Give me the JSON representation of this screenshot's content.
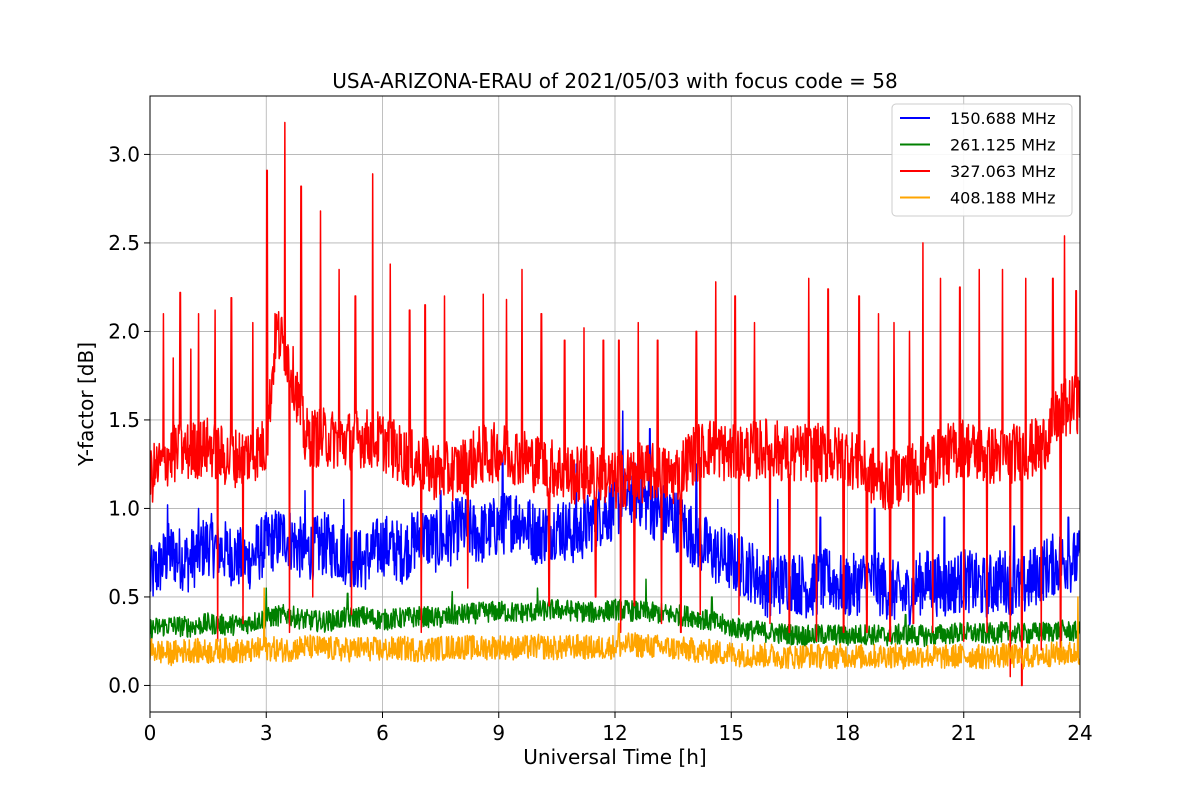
{
  "chart_data": {
    "type": "line",
    "title": "USA-ARIZONA-ERAU of 2021/05/03 with focus code = 58",
    "xlabel": "Universal Time [h]",
    "ylabel": "Y-factor [dB]",
    "xlim": [
      0,
      24
    ],
    "ylim": [
      -0.15,
      3.33
    ],
    "xticks": [
      0,
      3,
      6,
      9,
      12,
      15,
      18,
      21,
      24
    ],
    "xtick_labels": [
      "0",
      "3",
      "6",
      "9",
      "12",
      "15",
      "18",
      "21",
      "24"
    ],
    "yticks": [
      0.0,
      0.5,
      1.0,
      1.5,
      2.0,
      2.5,
      3.0
    ],
    "ytick_labels": [
      "0.0",
      "0.5",
      "1.0",
      "1.5",
      "2.0",
      "2.5",
      "3.0"
    ],
    "grid": true,
    "legend_position": "top-right",
    "series": [
      {
        "name": "150.688 MHz",
        "color": "#0000ff",
        "x": [
          0,
          0.5,
          1,
          1.5,
          2,
          2.5,
          3,
          3.5,
          4,
          4.5,
          5,
          5.5,
          6,
          6.5,
          7,
          7.5,
          8,
          8.5,
          9,
          9.5,
          10,
          10.5,
          11,
          11.5,
          12,
          12.5,
          13,
          13.5,
          14,
          14.5,
          15,
          15.5,
          16,
          16.5,
          17,
          17.5,
          18,
          18.5,
          19,
          19.5,
          20,
          20.5,
          21,
          21.5,
          22,
          22.5,
          23,
          23.5,
          24
        ],
        "y": [
          0.6,
          0.75,
          0.7,
          0.8,
          0.75,
          0.7,
          0.8,
          0.85,
          0.75,
          0.8,
          0.75,
          0.7,
          0.8,
          0.75,
          0.85,
          0.8,
          0.9,
          0.85,
          0.9,
          0.95,
          0.85,
          0.9,
          0.85,
          0.95,
          1.0,
          1.1,
          1.0,
          0.95,
          0.85,
          0.75,
          0.7,
          0.65,
          0.55,
          0.6,
          0.55,
          0.6,
          0.55,
          0.6,
          0.55,
          0.5,
          0.6,
          0.55,
          0.6,
          0.55,
          0.6,
          0.55,
          0.65,
          0.7,
          0.7
        ],
        "spikes": [
          [
            0.45,
            1.02
          ],
          [
            1.25,
            1.0
          ],
          [
            4.0,
            1.1
          ],
          [
            5.0,
            1.05
          ],
          [
            7.5,
            1.1
          ],
          [
            9.1,
            1.3
          ],
          [
            11.0,
            1.25
          ],
          [
            12.2,
            1.55
          ],
          [
            12.9,
            1.45
          ],
          [
            14.1,
            1.25
          ],
          [
            16.2,
            1.05
          ],
          [
            17.3,
            0.95
          ],
          [
            18.7,
            1.0
          ],
          [
            20.5,
            0.95
          ],
          [
            22.3,
            0.9
          ],
          [
            23.7,
            0.95
          ]
        ]
      },
      {
        "name": "261.125 MHz",
        "color": "#008000",
        "x": [
          0,
          0.5,
          1,
          1.5,
          2,
          2.5,
          3,
          3.5,
          4,
          4.5,
          5,
          5.5,
          6,
          6.5,
          7,
          7.5,
          8,
          8.5,
          9,
          9.5,
          10,
          10.5,
          11,
          11.5,
          12,
          12.5,
          13,
          13.5,
          14,
          14.5,
          15,
          15.5,
          16,
          16.5,
          17,
          17.5,
          18,
          18.5,
          19,
          19.5,
          20,
          20.5,
          21,
          21.5,
          22,
          22.5,
          23,
          23.5,
          24
        ],
        "y": [
          0.32,
          0.34,
          0.33,
          0.35,
          0.34,
          0.35,
          0.38,
          0.4,
          0.37,
          0.36,
          0.38,
          0.39,
          0.37,
          0.38,
          0.39,
          0.38,
          0.4,
          0.41,
          0.42,
          0.41,
          0.42,
          0.43,
          0.42,
          0.41,
          0.43,
          0.42,
          0.41,
          0.4,
          0.39,
          0.36,
          0.33,
          0.31,
          0.3,
          0.29,
          0.28,
          0.29,
          0.28,
          0.29,
          0.28,
          0.29,
          0.28,
          0.29,
          0.3,
          0.29,
          0.3,
          0.29,
          0.3,
          0.31,
          0.3
        ],
        "spikes": [
          [
            3.0,
            0.55
          ],
          [
            5.1,
            0.52
          ],
          [
            7.8,
            0.53
          ],
          [
            10.0,
            0.55
          ],
          [
            12.8,
            0.6
          ],
          [
            14.5,
            0.5
          ],
          [
            19.5,
            0.4
          ]
        ]
      },
      {
        "name": "327.063 MHz",
        "color": "#ff0000",
        "x": [
          0,
          0.5,
          1,
          1.5,
          2,
          2.5,
          3,
          3.25,
          3.5,
          3.75,
          4,
          4.5,
          5,
          5.5,
          6,
          6.5,
          7,
          7.5,
          8,
          8.5,
          9,
          9.5,
          10,
          10.5,
          11,
          11.5,
          12,
          12.5,
          13,
          13.5,
          14,
          14.5,
          15,
          15.5,
          16,
          16.5,
          17,
          17.5,
          18,
          18.5,
          19,
          19.5,
          20,
          20.5,
          21,
          21.5,
          22,
          22.5,
          23,
          23.5,
          24
        ],
        "y": [
          1.18,
          1.3,
          1.32,
          1.35,
          1.28,
          1.3,
          1.35,
          2.0,
          1.9,
          1.7,
          1.4,
          1.4,
          1.38,
          1.4,
          1.38,
          1.3,
          1.25,
          1.2,
          1.22,
          1.3,
          1.32,
          1.3,
          1.25,
          1.22,
          1.18,
          1.2,
          1.15,
          1.2,
          1.2,
          1.18,
          1.3,
          1.35,
          1.3,
          1.32,
          1.35,
          1.3,
          1.32,
          1.3,
          1.3,
          1.2,
          1.15,
          1.2,
          1.25,
          1.3,
          1.35,
          1.3,
          1.3,
          1.32,
          1.35,
          1.55,
          1.6
        ],
        "spikes": [
          [
            0.35,
            2.1
          ],
          [
            0.6,
            1.85
          ],
          [
            0.78,
            2.22
          ],
          [
            1.05,
            1.9
          ],
          [
            1.25,
            2.1
          ],
          [
            1.68,
            2.12
          ],
          [
            2.1,
            2.19
          ],
          [
            2.4,
            1.95
          ],
          [
            2.65,
            2.05
          ],
          [
            3.02,
            2.91
          ],
          [
            3.48,
            3.18
          ],
          [
            3.9,
            2.82
          ],
          [
            4.4,
            2.68
          ],
          [
            4.88,
            2.35
          ],
          [
            5.3,
            2.2
          ],
          [
            5.75,
            2.89
          ],
          [
            6.2,
            2.38
          ],
          [
            6.7,
            2.12
          ],
          [
            7.1,
            2.15
          ],
          [
            7.6,
            2.2
          ],
          [
            8.2,
            2.15
          ],
          [
            8.6,
            2.21
          ],
          [
            9.2,
            2.18
          ],
          [
            9.6,
            2.35
          ],
          [
            10.1,
            2.1
          ],
          [
            10.7,
            1.95
          ],
          [
            11.2,
            2.02
          ],
          [
            11.7,
            1.95
          ],
          [
            12.1,
            1.95
          ],
          [
            12.6,
            2.05
          ],
          [
            13.1,
            1.95
          ],
          [
            13.7,
            1.85
          ],
          [
            14.1,
            2.0
          ],
          [
            14.6,
            2.28
          ],
          [
            15.1,
            2.2
          ],
          [
            15.6,
            2.05
          ],
          [
            16.0,
            2.2
          ],
          [
            16.5,
            2.2
          ],
          [
            17.0,
            2.3
          ],
          [
            17.5,
            2.24
          ],
          [
            17.9,
            2.32
          ],
          [
            18.3,
            2.2
          ],
          [
            18.8,
            2.1
          ],
          [
            19.2,
            2.05
          ],
          [
            19.6,
            2.0
          ],
          [
            19.95,
            2.5
          ],
          [
            20.4,
            2.3
          ],
          [
            20.9,
            2.25
          ],
          [
            21.4,
            2.35
          ],
          [
            22.0,
            2.35
          ],
          [
            22.6,
            2.3
          ],
          [
            23.0,
            2.2
          ],
          [
            23.3,
            2.3
          ],
          [
            23.6,
            2.54
          ],
          [
            23.9,
            2.23
          ]
        ],
        "dips": [
          [
            1.75,
            0.25
          ],
          [
            2.4,
            0.35
          ],
          [
            3.6,
            0.3
          ],
          [
            4.2,
            0.5
          ],
          [
            5.2,
            0.4
          ],
          [
            7.0,
            0.3
          ],
          [
            8.2,
            0.55
          ],
          [
            10.3,
            0.45
          ],
          [
            11.5,
            0.5
          ],
          [
            12.15,
            0.3
          ],
          [
            12.5,
            0.45
          ],
          [
            13.2,
            0.35
          ],
          [
            13.7,
            0.3
          ],
          [
            14.2,
            0.4
          ],
          [
            15.2,
            0.4
          ],
          [
            16.0,
            0.35
          ],
          [
            16.5,
            0.3
          ],
          [
            17.2,
            0.25
          ],
          [
            17.9,
            0.3
          ],
          [
            18.5,
            0.3
          ],
          [
            19.1,
            0.25
          ],
          [
            19.7,
            0.35
          ],
          [
            20.2,
            0.3
          ],
          [
            21.0,
            0.25
          ],
          [
            21.6,
            0.3
          ],
          [
            22.2,
            0.05
          ],
          [
            22.5,
            0.0
          ],
          [
            23.0,
            0.2
          ],
          [
            23.5,
            0.15
          ]
        ]
      },
      {
        "name": "408.188 MHz",
        "color": "#ffa500",
        "x": [
          0,
          0.5,
          1,
          1.5,
          2,
          2.5,
          3,
          3.5,
          4,
          4.5,
          5,
          5.5,
          6,
          6.5,
          7,
          7.5,
          8,
          8.5,
          9,
          9.5,
          10,
          10.5,
          11,
          11.5,
          12,
          12.5,
          13,
          13.5,
          14,
          14.5,
          15,
          15.5,
          16,
          16.5,
          17,
          17.5,
          18,
          18.5,
          19,
          19.5,
          20,
          20.5,
          21,
          21.5,
          22,
          22.5,
          23,
          23.5,
          24
        ],
        "y": [
          0.2,
          0.18,
          0.2,
          0.19,
          0.2,
          0.19,
          0.21,
          0.2,
          0.22,
          0.21,
          0.2,
          0.21,
          0.2,
          0.21,
          0.2,
          0.21,
          0.22,
          0.21,
          0.22,
          0.21,
          0.22,
          0.21,
          0.22,
          0.21,
          0.22,
          0.23,
          0.22,
          0.21,
          0.2,
          0.19,
          0.18,
          0.17,
          0.17,
          0.16,
          0.17,
          0.16,
          0.17,
          0.16,
          0.17,
          0.16,
          0.17,
          0.16,
          0.17,
          0.16,
          0.17,
          0.16,
          0.17,
          0.18,
          0.18
        ],
        "spikes": [
          [
            2.95,
            0.55
          ],
          [
            12.1,
            0.35
          ],
          [
            23.95,
            0.5
          ]
        ]
      }
    ]
  }
}
